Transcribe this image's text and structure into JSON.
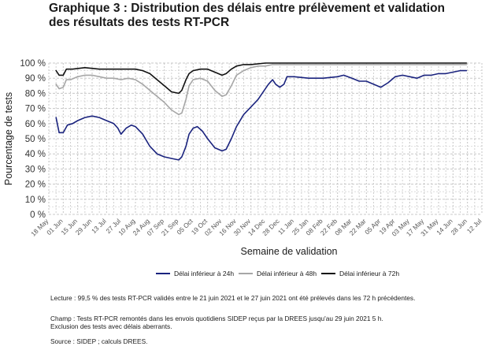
{
  "title_lines": [
    "Graphique 3 : Distribution des délais entre prélèvement et validation",
    "des résultats des tests RT-PCR"
  ],
  "legend_items": [
    {
      "label": "Délai inférieur à 24h",
      "color": "#1a237e"
    },
    {
      "label": "Délai inférieur à 48h",
      "color": "#a6a6a6"
    },
    {
      "label": "Délai inférieur à 72h",
      "color": "#111111"
    }
  ],
  "notes": {
    "lecture": "Lecture : 99,5 % des tests RT-PCR validés entre le 21 juin 2021 et le 27 juin 2021 ont été prélevés dans les 72 h précédentes.",
    "champ_1": "Champ : Tests RT-PCR remontés dans les envois quotidiens SIDEP reçus par la DREES jusqu'au 29 juin 2021 5 h.",
    "champ_2": "Exclusion des tests avec délais aberrants.",
    "source": "Source : SIDEP ; calculs DREES."
  },
  "chart_data": {
    "type": "line",
    "title": "Graphique 3 : Distribution des délais entre prélèvement et validation des résultats des tests RT-PCR",
    "xlabel": "Semaine de validation",
    "ylabel": "Pourcentage de tests",
    "ylim": [
      0,
      100
    ],
    "xlim": [
      "2020-05-18",
      "2021-07-12"
    ],
    "y_ticks": [
      "0 %",
      "10 %",
      "20 %",
      "30 %",
      "40 %",
      "50 %",
      "60 %",
      "70 %",
      "80 %",
      "90 %",
      "100 %"
    ],
    "y_tick_values": [
      0,
      10,
      20,
      30,
      40,
      50,
      60,
      70,
      80,
      90,
      100
    ],
    "x_ticks": [
      "18 May",
      "01 Jun",
      "15 Jun",
      "29 Jun",
      "13 Jul",
      "27 Jul",
      "10 Aug",
      "24 Aug",
      "07 Sep",
      "21 Sep",
      "05 Oct",
      "19 Oct",
      "02 Nov",
      "16 Nov",
      "30 Nov",
      "14 Dec",
      "28 Dec",
      "11 Jan",
      "25 Jan",
      "08 Feb",
      "22 Feb",
      "08 Mar",
      "22 Mar",
      "05 Apr",
      "19 Apr",
      "03 May",
      "17 May",
      "31 May",
      "14 Jun",
      "28 Jun",
      "12 Jul"
    ],
    "x_tick_dates": [
      "2020-05-18",
      "2020-06-01",
      "2020-06-15",
      "2020-06-29",
      "2020-07-13",
      "2020-07-27",
      "2020-08-10",
      "2020-08-24",
      "2020-09-07",
      "2020-09-21",
      "2020-10-05",
      "2020-10-19",
      "2020-11-02",
      "2020-11-16",
      "2020-11-30",
      "2020-12-14",
      "2020-12-28",
      "2021-01-11",
      "2021-01-25",
      "2021-02-08",
      "2021-02-22",
      "2021-03-08",
      "2021-03-22",
      "2021-04-05",
      "2021-04-19",
      "2021-05-03",
      "2021-05-17",
      "2021-05-31",
      "2021-06-14",
      "2021-06-28",
      "2021-07-12"
    ],
    "grid": true,
    "legend_position": "bottom",
    "series": [
      {
        "name": "Délai inférieur à 24h",
        "color": "#1a237e",
        "points": [
          [
            "2020-05-25",
            64
          ],
          [
            "2020-05-28",
            54
          ],
          [
            "2020-06-01",
            54
          ],
          [
            "2020-06-05",
            59
          ],
          [
            "2020-06-10",
            60
          ],
          [
            "2020-06-15",
            62
          ],
          [
            "2020-06-22",
            64
          ],
          [
            "2020-06-29",
            65
          ],
          [
            "2020-07-06",
            64
          ],
          [
            "2020-07-13",
            62
          ],
          [
            "2020-07-20",
            60
          ],
          [
            "2020-07-24",
            57
          ],
          [
            "2020-07-27",
            53
          ],
          [
            "2020-08-01",
            57
          ],
          [
            "2020-08-06",
            59
          ],
          [
            "2020-08-10",
            58
          ],
          [
            "2020-08-17",
            53
          ],
          [
            "2020-08-24",
            45
          ],
          [
            "2020-08-31",
            40
          ],
          [
            "2020-09-07",
            38
          ],
          [
            "2020-09-14",
            37
          ],
          [
            "2020-09-21",
            36
          ],
          [
            "2020-09-24",
            38
          ],
          [
            "2020-09-28",
            45
          ],
          [
            "2020-10-01",
            53
          ],
          [
            "2020-10-05",
            57
          ],
          [
            "2020-10-09",
            58
          ],
          [
            "2020-10-14",
            55
          ],
          [
            "2020-10-19",
            50
          ],
          [
            "2020-10-26",
            44
          ],
          [
            "2020-11-02",
            42
          ],
          [
            "2020-11-06",
            43
          ],
          [
            "2020-11-11",
            50
          ],
          [
            "2020-11-16",
            58
          ],
          [
            "2020-11-23",
            66
          ],
          [
            "2020-11-30",
            71
          ],
          [
            "2020-12-07",
            76
          ],
          [
            "2020-12-14",
            83
          ],
          [
            "2020-12-17",
            86
          ],
          [
            "2020-12-21",
            89
          ],
          [
            "2020-12-24",
            86
          ],
          [
            "2020-12-28",
            84
          ],
          [
            "2021-01-01",
            86
          ],
          [
            "2021-01-04",
            91
          ],
          [
            "2021-01-11",
            91
          ],
          [
            "2021-01-25",
            90
          ],
          [
            "2021-02-08",
            90
          ],
          [
            "2021-02-22",
            91
          ],
          [
            "2021-02-28",
            92
          ],
          [
            "2021-03-08",
            90
          ],
          [
            "2021-03-15",
            88
          ],
          [
            "2021-03-22",
            88
          ],
          [
            "2021-03-29",
            86
          ],
          [
            "2021-04-05",
            84
          ],
          [
            "2021-04-12",
            87
          ],
          [
            "2021-04-19",
            91
          ],
          [
            "2021-04-26",
            92
          ],
          [
            "2021-05-03",
            91
          ],
          [
            "2021-05-10",
            90
          ],
          [
            "2021-05-17",
            92
          ],
          [
            "2021-05-24",
            92
          ],
          [
            "2021-05-31",
            93
          ],
          [
            "2021-06-07",
            93
          ],
          [
            "2021-06-14",
            94
          ],
          [
            "2021-06-21",
            95
          ],
          [
            "2021-06-27",
            95
          ]
        ]
      },
      {
        "name": "Délai inférieur à 48h",
        "color": "#a6a6a6",
        "points": [
          [
            "2020-05-25",
            86
          ],
          [
            "2020-05-28",
            83
          ],
          [
            "2020-06-01",
            84
          ],
          [
            "2020-06-04",
            89
          ],
          [
            "2020-06-08",
            89
          ],
          [
            "2020-06-15",
            91
          ],
          [
            "2020-06-22",
            92
          ],
          [
            "2020-06-29",
            92
          ],
          [
            "2020-07-06",
            91
          ],
          [
            "2020-07-13",
            90
          ],
          [
            "2020-07-20",
            90
          ],
          [
            "2020-07-27",
            89
          ],
          [
            "2020-08-03",
            90
          ],
          [
            "2020-08-10",
            89
          ],
          [
            "2020-08-17",
            86
          ],
          [
            "2020-08-24",
            82
          ],
          [
            "2020-08-31",
            78
          ],
          [
            "2020-09-07",
            74
          ],
          [
            "2020-09-14",
            69
          ],
          [
            "2020-09-21",
            66
          ],
          [
            "2020-09-24",
            67
          ],
          [
            "2020-09-28",
            76
          ],
          [
            "2020-10-01",
            85
          ],
          [
            "2020-10-05",
            89
          ],
          [
            "2020-10-12",
            90
          ],
          [
            "2020-10-19",
            88
          ],
          [
            "2020-10-26",
            82
          ],
          [
            "2020-11-02",
            78
          ],
          [
            "2020-11-06",
            79
          ],
          [
            "2020-11-11",
            85
          ],
          [
            "2020-11-16",
            92
          ],
          [
            "2020-11-23",
            95
          ],
          [
            "2020-11-30",
            97
          ],
          [
            "2020-12-07",
            98
          ],
          [
            "2020-12-14",
            98
          ],
          [
            "2020-12-21",
            99
          ],
          [
            "2021-01-04",
            99
          ],
          [
            "2021-02-08",
            99
          ],
          [
            "2021-03-08",
            99
          ],
          [
            "2021-04-05",
            99
          ],
          [
            "2021-05-03",
            99
          ],
          [
            "2021-06-01",
            99
          ],
          [
            "2021-06-27",
            99
          ]
        ]
      },
      {
        "name": "Délai inférieur à 72h",
        "color": "#111111",
        "points": [
          [
            "2020-05-25",
            95
          ],
          [
            "2020-05-28",
            92
          ],
          [
            "2020-06-01",
            92
          ],
          [
            "2020-06-04",
            96
          ],
          [
            "2020-06-10",
            96
          ],
          [
            "2020-06-22",
            97
          ],
          [
            "2020-07-06",
            96
          ],
          [
            "2020-07-27",
            96
          ],
          [
            "2020-08-10",
            96
          ],
          [
            "2020-08-17",
            95
          ],
          [
            "2020-08-24",
            93
          ],
          [
            "2020-08-31",
            89
          ],
          [
            "2020-09-07",
            85
          ],
          [
            "2020-09-14",
            81
          ],
          [
            "2020-09-21",
            80
          ],
          [
            "2020-09-24",
            82
          ],
          [
            "2020-09-28",
            89
          ],
          [
            "2020-10-01",
            93
          ],
          [
            "2020-10-05",
            95
          ],
          [
            "2020-10-12",
            96
          ],
          [
            "2020-10-19",
            96
          ],
          [
            "2020-10-26",
            94
          ],
          [
            "2020-11-02",
            92
          ],
          [
            "2020-11-06",
            93
          ],
          [
            "2020-11-11",
            96
          ],
          [
            "2020-11-16",
            98
          ],
          [
            "2020-11-23",
            99
          ],
          [
            "2020-11-30",
            99
          ],
          [
            "2020-12-14",
            100
          ],
          [
            "2021-01-11",
            100
          ],
          [
            "2021-03-08",
            100
          ],
          [
            "2021-04-05",
            100
          ],
          [
            "2021-05-03",
            100
          ],
          [
            "2021-06-27",
            100
          ]
        ]
      }
    ]
  }
}
